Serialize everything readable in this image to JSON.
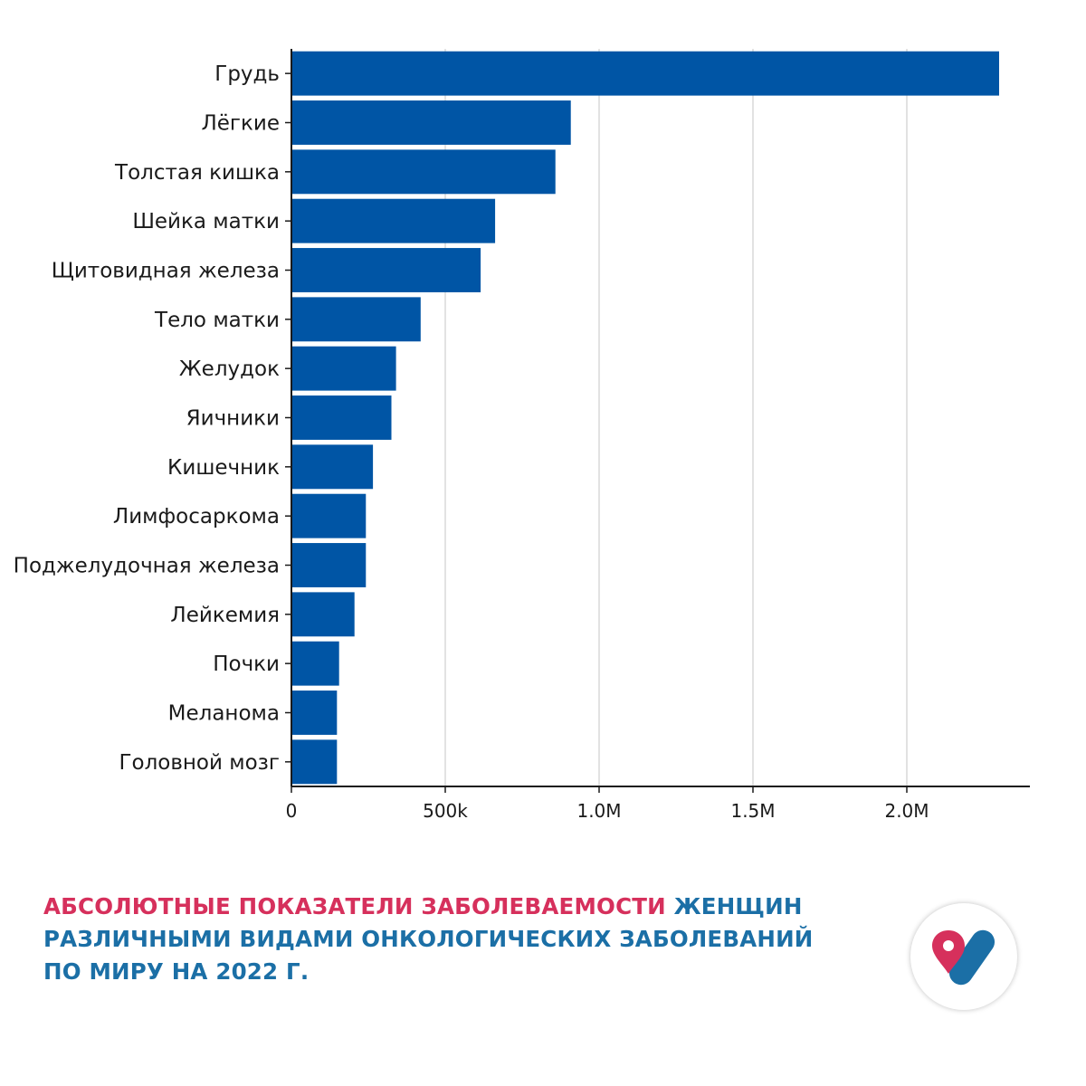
{
  "chart_data": {
    "type": "bar",
    "orientation": "horizontal",
    "categories": [
      "Грудь",
      "Лёгкие",
      "Толстая кишка",
      "Шейка матки",
      "Щитовидная железа",
      "Тело матки",
      "Желудок",
      "Яичники",
      "Кишечник",
      "Лимфосаркома",
      "Поджелудочная железа",
      "Лейкемия",
      "Почки",
      "Меланома",
      "Головной мозг"
    ],
    "values": [
      2300000,
      908000,
      858000,
      662000,
      615000,
      420000,
      340000,
      325000,
      265000,
      242000,
      242000,
      205000,
      155000,
      148000,
      148000
    ],
    "xlim": [
      0,
      2400000
    ],
    "x_ticks": [
      0,
      500000,
      1000000,
      1500000,
      2000000
    ],
    "x_tick_labels": [
      "0",
      "500k",
      "1.0M",
      "1.5M",
      "2.0M"
    ],
    "grid": "vertical",
    "bar_color": "#0055a5"
  },
  "caption": {
    "accent": "АБСОЛЮТНЫЕ ПОКАЗАТЕЛИ ЗАБОЛЕВАЕМОСТИ",
    "rest_line1": " ЖЕНЩИН",
    "line2": "РАЗЛИЧНЫМИ ВИДАМИ ОНКОЛОГИЧЕСКИХ ЗАБОЛЕВАНИЙ",
    "line3": "ПО МИРУ НА 2022 Г."
  },
  "logo": {
    "icon": "pin-and-capsule-logo-icon",
    "colors": [
      "#d6305c",
      "#1b6fa6"
    ]
  }
}
